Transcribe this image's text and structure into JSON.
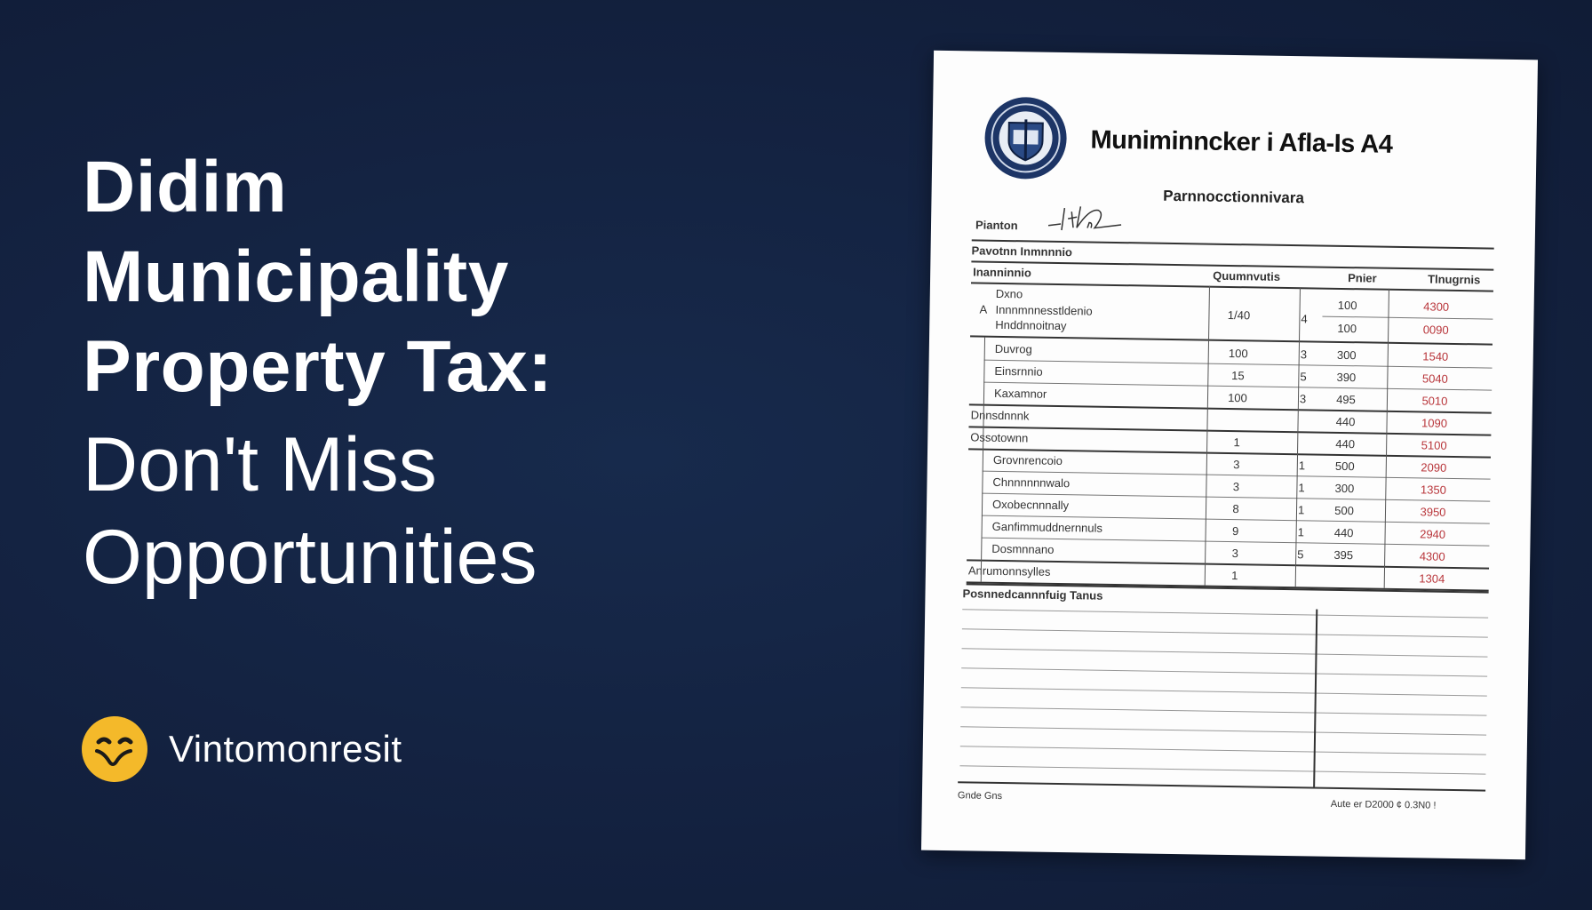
{
  "headline": {
    "line1": "Didim",
    "line2": "Municipality",
    "line3": "Property Tax:",
    "line4": "Don't Miss",
    "line5": "Opportunities"
  },
  "brand": {
    "name": "Vintomonresit",
    "logo_icon": "smiley-face-icon",
    "logo_color": "#f4b92a"
  },
  "document": {
    "title": "Muniminncker i Afla-Is A4",
    "subtitle": "Parnnocctionnivara",
    "signature_label": "Pianton",
    "section_label": "Pavotnn Inmnnnio",
    "table": {
      "headers": [
        "Inanninnio",
        "Quumnvutis",
        "Pnier",
        "Tlnugrnis"
      ],
      "first_row": {
        "marker": "A",
        "label_lines": [
          "Dxno",
          "Innnmnnesstldenio",
          "Hnddnnoitnay"
        ],
        "qty": "1/40",
        "unit": "4",
        "prices": [
          "100",
          "100"
        ],
        "taxes": [
          "4300",
          "0090"
        ]
      },
      "rows": [
        {
          "label": "Duvrog",
          "qty": "100",
          "unit": "3",
          "price": "300",
          "tax": "1540",
          "type": "item"
        },
        {
          "label": "Einsrnnio",
          "qty": "15",
          "unit": "5",
          "price": "390",
          "tax": "5040",
          "type": "item"
        },
        {
          "label": "Kaxamnor",
          "qty": "100",
          "unit": "3",
          "price": "495",
          "tax": "5010",
          "type": "item"
        },
        {
          "label": "Dnnsdnnnk",
          "qty": "",
          "unit": "",
          "price": "440",
          "tax": "1090",
          "type": "section"
        },
        {
          "label": "Ossotownn",
          "qty": "1",
          "unit": "",
          "price": "440",
          "tax": "5100",
          "type": "section"
        },
        {
          "label": "Grovnrencoio",
          "qty": "3",
          "unit": "1",
          "price": "500",
          "tax": "2090",
          "type": "item"
        },
        {
          "label": "Chnnnnnnwalo",
          "qty": "3",
          "unit": "1",
          "price": "300",
          "tax": "1350",
          "type": "item"
        },
        {
          "label": "Oxobecnnnally",
          "qty": "8",
          "unit": "1",
          "price": "500",
          "tax": "3950",
          "type": "item"
        },
        {
          "label": "Ganfimmuddnernnuls",
          "qty": "9",
          "unit": "1",
          "price": "440",
          "tax": "2940",
          "type": "item"
        },
        {
          "label": "Dosmnnano",
          "qty": "3",
          "unit": "5",
          "price": "395",
          "tax": "4300",
          "type": "item"
        },
        {
          "label": "Anrumonnsylles",
          "qty": "1",
          "unit": "",
          "price": "",
          "tax": "1304",
          "type": "section"
        }
      ]
    },
    "notes_label": "Posnnedcannnfuig Tanus",
    "footer_left": "Gnde Gns",
    "footer_right": "Aute er D2000 ¢ 0.3N0 !",
    "accent_red": "#b8353a"
  }
}
